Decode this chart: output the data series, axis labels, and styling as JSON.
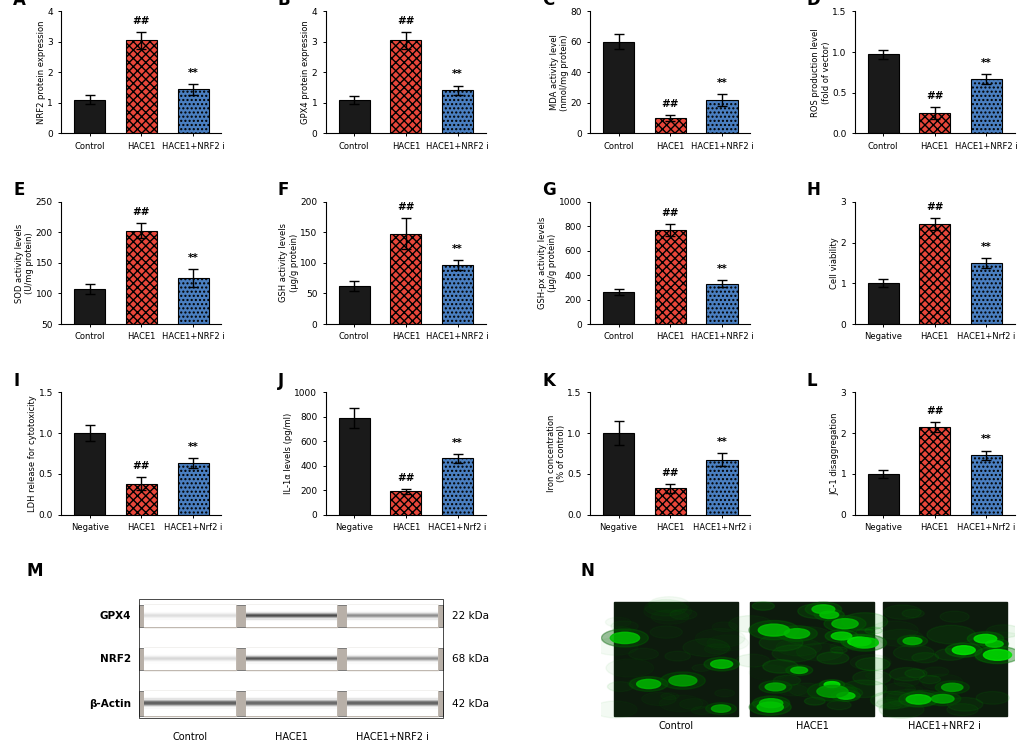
{
  "panels": {
    "A": {
      "title": "A",
      "ylabel": "NRF2 protein expression",
      "xlabel_labels": [
        "Control",
        "HACE1",
        "HACE1+NRF2 i"
      ],
      "values": [
        1.1,
        3.05,
        1.45
      ],
      "errors": [
        0.15,
        0.28,
        0.18
      ],
      "colors": [
        "black",
        "red",
        "blue"
      ],
      "ylim": [
        0,
        4
      ],
      "yticks": [
        0,
        1,
        2,
        3,
        4
      ],
      "sig_above": [
        "",
        "##",
        "**"
      ]
    },
    "B": {
      "title": "B",
      "ylabel": "GPX4 protein expression",
      "xlabel_labels": [
        "Control",
        "HACE1",
        "HACE1+NRF2 i"
      ],
      "values": [
        1.1,
        3.05,
        1.42
      ],
      "errors": [
        0.12,
        0.28,
        0.15
      ],
      "colors": [
        "black",
        "red",
        "blue"
      ],
      "ylim": [
        0,
        4
      ],
      "yticks": [
        0,
        1,
        2,
        3,
        4
      ],
      "sig_above": [
        "",
        "##",
        "**"
      ]
    },
    "C": {
      "title": "C",
      "ylabel": "MDA activity level\n(nmol/mg protein)",
      "xlabel_labels": [
        "Control",
        "HACE1",
        "HACE1+NRF2 i"
      ],
      "values": [
        60,
        10,
        22
      ],
      "errors": [
        5,
        2,
        4
      ],
      "colors": [
        "black",
        "red",
        "blue"
      ],
      "ylim": [
        0,
        80
      ],
      "yticks": [
        0,
        20,
        40,
        60,
        80
      ],
      "sig_above": [
        "",
        "##",
        "**"
      ]
    },
    "D": {
      "title": "D",
      "ylabel": "ROS production level\n(fold of vector)",
      "xlabel_labels": [
        "Control",
        "HACE1",
        "HACE1+NRF2 i"
      ],
      "values": [
        0.97,
        0.25,
        0.67
      ],
      "errors": [
        0.06,
        0.07,
        0.06
      ],
      "colors": [
        "black",
        "red",
        "blue"
      ],
      "ylim": [
        0.0,
        1.5
      ],
      "yticks": [
        0.0,
        0.5,
        1.0,
        1.5
      ],
      "sig_above": [
        "",
        "##",
        "**"
      ]
    },
    "E": {
      "title": "E",
      "ylabel": "SOD activity levels\n(U/mg protein)",
      "xlabel_labels": [
        "Control",
        "HACE1",
        "HACE1+NRF2 i"
      ],
      "values": [
        107,
        203,
        125
      ],
      "errors": [
        8,
        12,
        15
      ],
      "colors": [
        "black",
        "red",
        "blue"
      ],
      "ylim": [
        50,
        250
      ],
      "yticks": [
        50,
        100,
        150,
        200,
        250
      ],
      "sig_above": [
        "",
        "##",
        "**"
      ]
    },
    "F": {
      "title": "F",
      "ylabel": "GSH activity levels\n(μg/g protein)",
      "xlabel_labels": [
        "Control",
        "HACE1",
        "HACE1+NRF2 i"
      ],
      "values": [
        62,
        148,
        97
      ],
      "errors": [
        8,
        25,
        8
      ],
      "colors": [
        "black",
        "red",
        "blue"
      ],
      "ylim": [
        0,
        200
      ],
      "yticks": [
        0,
        50,
        100,
        150,
        200
      ],
      "sig_above": [
        "",
        "##",
        "**"
      ]
    },
    "G": {
      "title": "G",
      "ylabel": "GSH-px activity levels\n(μg/g protein)",
      "xlabel_labels": [
        "Control",
        "HACE1",
        "HACE1+NRF2 i"
      ],
      "values": [
        260,
        770,
        330
      ],
      "errors": [
        25,
        50,
        30
      ],
      "colors": [
        "black",
        "red",
        "blue"
      ],
      "ylim": [
        0,
        1000
      ],
      "yticks": [
        0,
        200,
        400,
        600,
        800,
        1000
      ],
      "sig_above": [
        "",
        "##",
        "**"
      ]
    },
    "H": {
      "title": "H",
      "ylabel": "Cell viability",
      "xlabel_labels": [
        "Negative",
        "HACE1",
        "HACE1+Nrf2 i"
      ],
      "values": [
        1.0,
        2.45,
        1.5
      ],
      "errors": [
        0.1,
        0.15,
        0.12
      ],
      "colors": [
        "black",
        "red",
        "blue"
      ],
      "ylim": [
        0,
        3
      ],
      "yticks": [
        0,
        1,
        2,
        3
      ],
      "sig_above": [
        "",
        "##",
        "**"
      ]
    },
    "I": {
      "title": "I",
      "ylabel": "LDH release for cytotoxicity",
      "xlabel_labels": [
        "Negative",
        "HACE1",
        "HACE1+Nrf2 i"
      ],
      "values": [
        1.0,
        0.38,
        0.63
      ],
      "errors": [
        0.1,
        0.08,
        0.06
      ],
      "colors": [
        "black",
        "red",
        "blue"
      ],
      "ylim": [
        0.0,
        1.5
      ],
      "yticks": [
        0.0,
        0.5,
        1.0,
        1.5
      ],
      "sig_above": [
        "",
        "##",
        "**"
      ]
    },
    "J": {
      "title": "J",
      "ylabel": "IL-1α levels (pg/ml)",
      "xlabel_labels": [
        "Negative",
        "HACE1",
        "HACE1+Nrf2 i"
      ],
      "values": [
        790,
        190,
        460
      ],
      "errors": [
        80,
        20,
        35
      ],
      "colors": [
        "black",
        "red",
        "blue"
      ],
      "ylim": [
        0,
        1000
      ],
      "yticks": [
        0,
        200,
        400,
        600,
        800,
        1000
      ],
      "sig_above": [
        "",
        "##",
        "**"
      ]
    },
    "K": {
      "title": "K",
      "ylabel": "Iron concentration\n(% of control)",
      "xlabel_labels": [
        "Negative",
        "HACE1",
        "HACE1+Nrf2 i"
      ],
      "values": [
        1.0,
        0.32,
        0.67
      ],
      "errors": [
        0.15,
        0.05,
        0.08
      ],
      "colors": [
        "black",
        "red",
        "blue"
      ],
      "ylim": [
        0.0,
        1.5
      ],
      "yticks": [
        0.0,
        0.5,
        1.0,
        1.5
      ],
      "sig_above": [
        "",
        "##",
        "**"
      ]
    },
    "L": {
      "title": "L",
      "ylabel": "JC-1 disaggregation",
      "xlabel_labels": [
        "Negative",
        "HACE1",
        "HACE1+Nrf2 i"
      ],
      "values": [
        1.0,
        2.15,
        1.45
      ],
      "errors": [
        0.1,
        0.12,
        0.12
      ],
      "colors": [
        "black",
        "red",
        "blue"
      ],
      "ylim": [
        0,
        3
      ],
      "yticks": [
        0,
        1,
        2,
        3
      ],
      "sig_above": [
        "",
        "##",
        "**"
      ]
    }
  },
  "western_blot": {
    "title": "M",
    "bands": [
      "GPX4",
      "NRF2",
      "β-Actin"
    ],
    "kda": [
      "22 kDa",
      "68 kDa",
      "42 kDa"
    ],
    "lanes": [
      "Control",
      "HACE1",
      "HACE1+NRF2 i"
    ],
    "gpx4_intensities": [
      0.15,
      0.82,
      0.52
    ],
    "nrf2_intensities": [
      0.18,
      0.78,
      0.5
    ],
    "actin_intensities": [
      0.72,
      0.68,
      0.7
    ]
  },
  "fluorescence": {
    "title": "N",
    "labels": [
      "Control",
      "HACE1",
      "HACE1+NRF2 i"
    ],
    "n_spots": [
      5,
      15,
      8
    ],
    "base_green": [
      0.15,
      0.35,
      0.25
    ]
  },
  "bar_width": 0.6,
  "figure_bg": "#ffffff",
  "red_color": "#e8463a",
  "blue_color": "#4a7fc1"
}
